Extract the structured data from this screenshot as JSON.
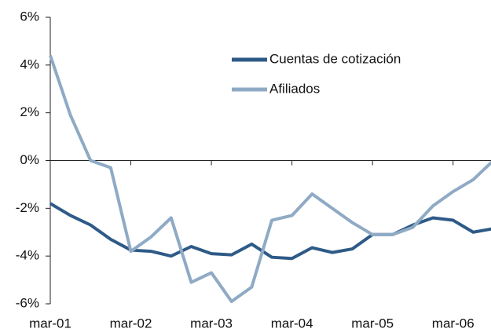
{
  "chart_data": {
    "type": "line",
    "categories": [
      "mar-01",
      null,
      null,
      null,
      "mar-02",
      null,
      null,
      null,
      "mar-03",
      null,
      null,
      null,
      "mar-04",
      null,
      null,
      null,
      "mar-05",
      null,
      null,
      null,
      "mar-06",
      null,
      null
    ],
    "series": [
      {
        "name": "Cuentas de cotización",
        "color": "#2e5a87",
        "values": [
          -1.8,
          -2.3,
          -2.7,
          -3.3,
          -3.75,
          -3.8,
          -4.0,
          -3.6,
          -3.9,
          -3.95,
          -3.5,
          -4.05,
          -4.1,
          -3.65,
          -3.85,
          -3.7,
          -3.1,
          -3.1,
          -2.7,
          -2.4,
          -2.5,
          -3.0,
          -2.85
        ]
      },
      {
        "name": "Afiliados",
        "color": "#8faac4",
        "values": [
          4.4,
          1.9,
          0.0,
          -0.3,
          -3.8,
          -3.2,
          -2.4,
          -5.1,
          -4.7,
          -5.9,
          -5.3,
          -2.5,
          -2.3,
          -1.4,
          -2.0,
          -2.6,
          -3.1,
          -3.1,
          -2.8,
          -1.9,
          -1.3,
          -0.8,
          0.0
        ]
      }
    ],
    "ylim": [
      -6,
      6
    ],
    "yticks": [
      {
        "value": -6,
        "label": "-6%"
      },
      {
        "value": -4,
        "label": "-4%"
      },
      {
        "value": -2,
        "label": "-2%"
      },
      {
        "value": 0,
        "label": "0%"
      },
      {
        "value": 2,
        "label": "2%"
      },
      {
        "value": 4,
        "label": "4%"
      },
      {
        "value": 6,
        "label": "6%"
      }
    ],
    "legend": "upper right"
  }
}
